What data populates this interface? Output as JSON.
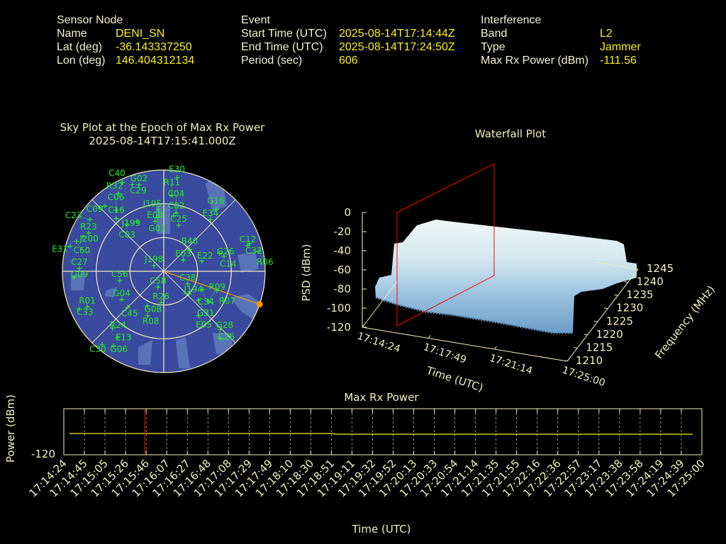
{
  "header": {
    "sensor": {
      "heading": "Sensor Node",
      "rows": [
        {
          "label": "Name",
          "value": "DENI_SN"
        },
        {
          "label": "Lat (deg)",
          "value": "-36.143337250"
        },
        {
          "label": "Lon (deg)",
          "value": "146.404312134"
        }
      ]
    },
    "event": {
      "heading": "Event",
      "rows": [
        {
          "label": "Start Time (UTC)",
          "value": "2025-08-14T17:14:44Z"
        },
        {
          "label": "End Time (UTC)",
          "value": "2025-08-14T17:24:50Z"
        },
        {
          "label": "Period (sec)",
          "value": "606"
        }
      ]
    },
    "interference": {
      "heading": "Interference",
      "rows": [
        {
          "label": "Band",
          "value": "L2"
        },
        {
          "label": "Type",
          "value": "Jammer"
        },
        {
          "label": "Max Rx Power (dBm)",
          "value": "-111.56"
        }
      ]
    }
  },
  "colors": {
    "label": "#f4f0d0",
    "value": "#f7f01e",
    "sky_bg": "#3a4a9e",
    "sky_patch": "#5a72b8",
    "sat": "#22ee22",
    "jammer": "#ff9900",
    "marker": "#ff0000",
    "power_line": "#f7f01e"
  },
  "chart_data": [
    {
      "type": "scatter",
      "title": "Sky Plot at the Epoch of Max Rx Power",
      "subtitle": "2025-08-14T17:15:41.000Z",
      "projection": "polar-az-el",
      "elevation_rings": [
        0,
        30,
        60
      ],
      "satellites": [
        {
          "id": "E30",
          "az": 8,
          "el": 6
        },
        {
          "id": "R11",
          "az": 6,
          "el": 22
        },
        {
          "id": "C40",
          "az": 335,
          "el": 3
        },
        {
          "id": "C29",
          "az": 340,
          "el": 8
        },
        {
          "id": "G02",
          "az": 344,
          "el": 10
        },
        {
          "id": "R32",
          "az": 330,
          "el": 10
        },
        {
          "id": "C09",
          "az": 318,
          "el": 12
        },
        {
          "id": "C06",
          "az": 322,
          "el": 21
        },
        {
          "id": "C16",
          "az": 318,
          "el": 27
        },
        {
          "id": "C23",
          "az": 305,
          "el": 10
        },
        {
          "id": "J195",
          "az": 355,
          "el": 35
        },
        {
          "id": "G01",
          "az": 353,
          "el": 42
        },
        {
          "id": "C03",
          "az": 322,
          "el": 37
        },
        {
          "id": "J199",
          "az": 332,
          "el": 40
        },
        {
          "id": "E08",
          "az": 350,
          "el": 45
        },
        {
          "id": "C02",
          "az": 10,
          "el": 40
        },
        {
          "id": "C04",
          "az": 12,
          "el": 37
        },
        {
          "id": "C25",
          "az": 18,
          "el": 47
        },
        {
          "id": "G16",
          "az": 40,
          "el": 18
        },
        {
          "id": "E34",
          "az": 42,
          "el": 28
        },
        {
          "id": "E31",
          "az": 285,
          "el": 4
        },
        {
          "id": "J200",
          "az": 293,
          "el": 12
        },
        {
          "id": "C60",
          "az": 289,
          "el": 8
        },
        {
          "id": "R23",
          "az": 297,
          "el": 15
        },
        {
          "id": "B40",
          "az": 50,
          "el": 60
        },
        {
          "id": "G26",
          "az": 72,
          "el": 38
        },
        {
          "id": "C14",
          "az": 76,
          "el": 35
        },
        {
          "id": "C32",
          "az": 72,
          "el": 10
        },
        {
          "id": "C12",
          "az": 73,
          "el": 12
        },
        {
          "id": "R06",
          "az": 78,
          "el": 4
        },
        {
          "id": "E03",
          "az": 60,
          "el": 70
        },
        {
          "id": "E22",
          "az": 75,
          "el": 55
        },
        {
          "id": "C27",
          "az": 272,
          "el": 15
        },
        {
          "id": "G09",
          "az": 266,
          "el": 10
        },
        {
          "id": "C56",
          "az": 258,
          "el": 50
        },
        {
          "id": "J198",
          "az": 300,
          "el": 80
        },
        {
          "id": "C58",
          "az": 200,
          "el": 75
        },
        {
          "id": "C38",
          "az": 118,
          "el": 66
        },
        {
          "id": "J194",
          "az": 132,
          "el": 60
        },
        {
          "id": "C34",
          "az": 115,
          "el": 52
        },
        {
          "id": "R07",
          "az": 110,
          "el": 40
        },
        {
          "id": "G31",
          "az": 130,
          "el": 50
        },
        {
          "id": "R09",
          "az": 124,
          "el": 42
        },
        {
          "id": "E05",
          "az": 142,
          "el": 40
        },
        {
          "id": "G28",
          "az": 136,
          "el": 18
        },
        {
          "id": "C26",
          "az": 140,
          "el": 12
        },
        {
          "id": "G04",
          "az": 236,
          "el": 45
        },
        {
          "id": "G08",
          "az": 205,
          "el": 56
        },
        {
          "id": "C45",
          "az": 225,
          "el": 45
        },
        {
          "id": "R26",
          "az": 185,
          "el": 62
        },
        {
          "id": "R08",
          "az": 200,
          "el": 48
        },
        {
          "id": "C33",
          "az": 246,
          "el": 8
        },
        {
          "id": "R01",
          "az": 245,
          "el": 15
        },
        {
          "id": "R24",
          "az": 222,
          "el": 22
        },
        {
          "id": "E13",
          "az": 215,
          "el": 18
        },
        {
          "id": "C30",
          "az": 220,
          "el": 5
        },
        {
          "id": "G06",
          "az": 214,
          "el": 10
        }
      ],
      "jammer_direction": {
        "az": 109,
        "el": 0
      }
    },
    {
      "type": "area",
      "title": "Waterfall Plot",
      "zlabel": "PSD (dBm)",
      "xlabel": "Time (UTC)",
      "ylabel": "Frequency (MHz)",
      "z_ticks": [
        "0",
        "-20",
        "-40",
        "-60",
        "-80",
        "-100",
        "-120"
      ],
      "freq_ticks": [
        "1210",
        "1215",
        "1220",
        "1225",
        "1230",
        "1235",
        "1240",
        "1245"
      ],
      "zlim": [
        -120,
        0
      ],
      "ylim": [
        1210,
        1245
      ],
      "description_levels": {
        "noise_floor_dBm": -90,
        "jammed_band_dBm": -30,
        "band_MHz": [
          1212,
          1238
        ]
      }
    },
    {
      "type": "line",
      "title": "Max Rx Power",
      "xlabel": "Time (UTC)",
      "ylabel": "Power (dBm)",
      "y_tick": "-120",
      "marker_time": "17:15:41",
      "x_ticks": [
        "17:14:24",
        "17:14:45",
        "17:15:05",
        "17:15:26",
        "17:15:46",
        "17:16:07",
        "17:16:27",
        "17:16:48",
        "17:17:08",
        "17:17:29",
        "17:17:49",
        "17:18:10",
        "17:18:30",
        "17:18:51",
        "17:19:11",
        "17:19:32",
        "17:19:52",
        "17:20:13",
        "17:20:33",
        "17:20:54",
        "17:21:14",
        "17:21:35",
        "17:21:55",
        "17:22:16",
        "17:22:36",
        "17:22:57",
        "17:23:17",
        "17:23:38",
        "17:23:58",
        "17:24:19",
        "17:24:39",
        "17:25:00"
      ],
      "series": [
        {
          "x_range": [
            "17:14:44",
            "17:24:50"
          ],
          "approx_value_dBm": -111.6
        }
      ]
    }
  ]
}
